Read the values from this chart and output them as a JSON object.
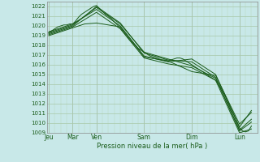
{
  "title": "",
  "xlabel": "Pression niveau de la mer( hPa )",
  "bg_color": "#c8e8e8",
  "grid_major_color": "#a8c8a8",
  "grid_minor_color": "#b8d8b8",
  "line_color": "#1a5c1a",
  "ylim": [
    1009,
    1022.5
  ],
  "yticks": [
    1009,
    1010,
    1011,
    1012,
    1013,
    1014,
    1015,
    1016,
    1017,
    1018,
    1019,
    1020,
    1021,
    1022
  ],
  "day_labels": [
    "Jeu",
    "Mar",
    "Ven",
    "Sam",
    "Dim",
    "Lun"
  ],
  "day_positions": [
    0,
    24,
    48,
    96,
    144,
    192
  ],
  "xlim": [
    -2,
    210
  ],
  "lines": [
    [
      0,
      1019.3,
      3,
      1019.5,
      6,
      1019.7,
      9,
      1019.9,
      12,
      1020.0,
      15,
      1020.1,
      18,
      1020.1,
      21,
      1020.2,
      24,
      1020.2,
      27,
      1020.5,
      30,
      1020.9,
      33,
      1021.2,
      36,
      1021.4,
      39,
      1021.6,
      42,
      1021.8,
      45,
      1022.0,
      48,
      1022.1,
      51,
      1021.8,
      54,
      1021.5,
      57,
      1021.2,
      60,
      1021.0,
      63,
      1020.7,
      66,
      1020.4,
      69,
      1020.1,
      72,
      1019.8,
      75,
      1019.4,
      78,
      1019.0,
      81,
      1018.6,
      84,
      1018.3,
      87,
      1018.0,
      90,
      1017.7,
      93,
      1017.5,
      96,
      1017.3,
      99,
      1017.1,
      102,
      1016.9,
      105,
      1016.8,
      108,
      1016.7,
      111,
      1016.6,
      114,
      1016.5,
      117,
      1016.5,
      120,
      1016.4,
      123,
      1016.5,
      126,
      1016.6,
      129,
      1016.7,
      132,
      1016.7,
      135,
      1016.6,
      138,
      1016.4,
      141,
      1016.2,
      144,
      1016.0,
      147,
      1015.8,
      150,
      1015.6,
      153,
      1015.4,
      156,
      1015.2,
      159,
      1015.0,
      162,
      1014.8,
      165,
      1014.6,
      168,
      1014.4,
      171,
      1014.0,
      174,
      1013.5,
      177,
      1012.9,
      180,
      1012.2,
      183,
      1011.5,
      186,
      1010.9,
      189,
      1010.2,
      192,
      1009.5,
      195,
      1009.2,
      198,
      1009.1,
      201,
      1009.2,
      204,
      1009.7
    ],
    [
      0,
      1019.2,
      24,
      1020.0,
      48,
      1022.0,
      72,
      1020.3,
      96,
      1017.2,
      120,
      1016.5,
      144,
      1016.3,
      168,
      1014.7,
      192,
      1009.2,
      204,
      1010.1
    ],
    [
      0,
      1019.4,
      24,
      1020.2,
      48,
      1021.7,
      72,
      1020.0,
      96,
      1016.9,
      120,
      1016.3,
      144,
      1016.6,
      168,
      1015.0,
      192,
      1009.6,
      204,
      1011.3
    ],
    [
      0,
      1019.1,
      24,
      1019.9,
      48,
      1021.4,
      72,
      1019.7,
      96,
      1016.7,
      120,
      1016.1,
      144,
      1015.7,
      168,
      1014.4,
      192,
      1009.0,
      204,
      1009.4
    ],
    [
      0,
      1019.3,
      24,
      1020.1,
      48,
      1021.9,
      72,
      1020.2,
      96,
      1017.3,
      120,
      1016.6,
      144,
      1015.9,
      168,
      1014.6,
      192,
      1009.3,
      204,
      1010.4
    ],
    [
      0,
      1019.0,
      24,
      1019.8,
      36,
      1020.2,
      48,
      1020.3,
      72,
      1019.9,
      96,
      1016.8,
      120,
      1016.4,
      144,
      1015.3,
      168,
      1014.9,
      192,
      1009.9,
      204,
      1011.1
    ]
  ]
}
